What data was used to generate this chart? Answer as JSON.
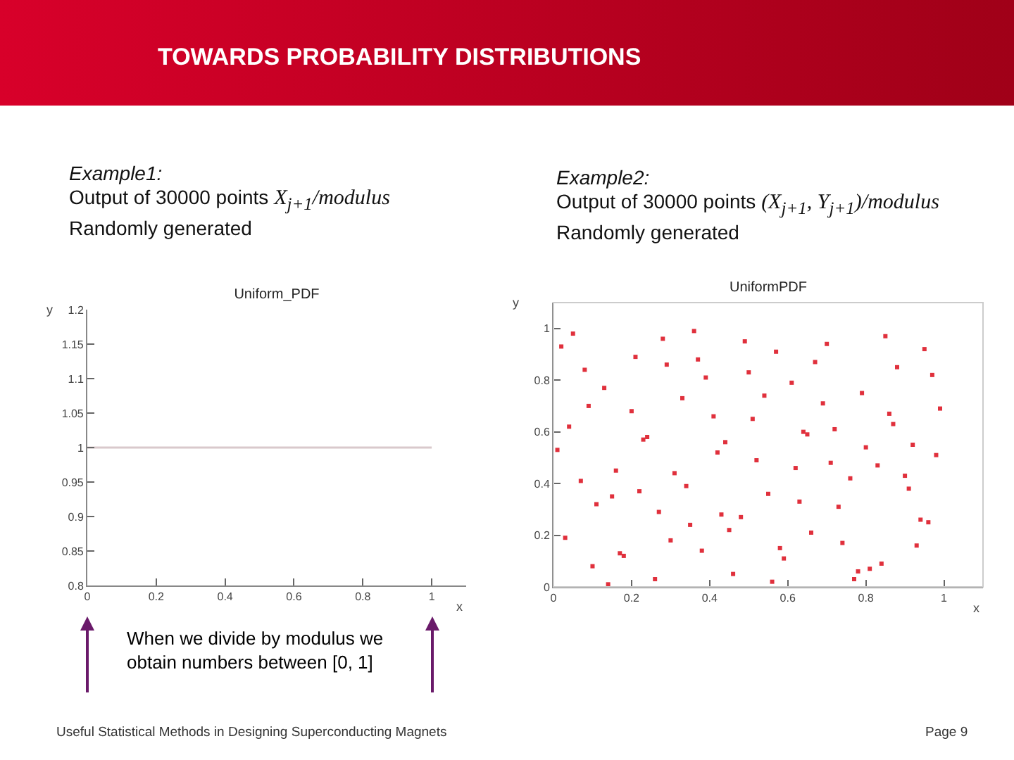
{
  "chart_data": [
    {
      "type": "line",
      "title": "Uniform_PDF",
      "xlabel": "x",
      "ylabel": "y",
      "annotations": [
        "TOWARDS PROBABILITY DISTRIBUTIONS",
        "Example1:",
        "Output of 30000 points X$_{j+1}$/modulus",
        "Randomly generated",
        "When we divide by modulus we obtain numbers between [0, 1]",
        "Useful Statistical Methods in Designing Superconducting Magnets",
        "Page 9"
      ],
      "x": [
        0,
        1
      ],
      "series": [
        {
          "color": "#d9c9cc",
          "values": [
            1,
            1
          ]
        }
      ],
      "xlim": [
        0,
        1.1
      ],
      "xticks": [
        0,
        0.2,
        0.4,
        0.6,
        0.8,
        1
      ],
      "ylim": [
        0.8,
        1.2
      ],
      "yticks": [
        0.8,
        0.85,
        0.9,
        0.95,
        1,
        1.05,
        1.1,
        1.15,
        1.2
      ],
      "marker": "none"
    },
    {
      "type": "scatter",
      "title": "UniformPDF",
      "xlabel": "x",
      "ylabel": "y",
      "annotations": [
        "Example2:",
        "Output of 30000 points (X$_{j+1}$, Y$_{j+1}$)/modulus",
        "Randomly generated"
      ],
      "x": [
        0.02,
        0.07,
        0.13,
        0.18,
        0.24,
        0.29,
        0.35,
        0.41,
        0.46,
        0.52,
        0.57,
        0.63,
        0.69,
        0.74,
        0.8,
        0.85,
        0.91,
        0.97,
        0.04,
        0.1,
        0.16,
        0.21,
        0.27,
        0.33,
        0.38,
        0.44,
        0.49,
        0.55,
        0.61,
        0.66,
        0.72,
        0.77,
        0.83,
        0.88,
        0.94,
        0.99,
        0.03,
        0.08,
        0.15,
        0.2,
        0.26,
        0.31,
        0.37,
        0.42,
        0.48,
        0.54,
        0.59,
        0.65,
        0.7,
        0.76,
        0.81,
        0.87,
        0.93,
        0.98,
        0.05,
        0.11,
        0.17,
        0.23,
        0.28,
        0.34,
        0.39,
        0.45,
        0.51,
        0.56,
        0.62,
        0.67,
        0.73,
        0.79,
        0.84,
        0.9,
        0.95,
        0.01,
        0.09,
        0.14,
        0.22,
        0.3,
        0.36,
        0.43,
        0.5,
        0.58,
        0.64,
        0.71,
        0.78,
        0.86,
        0.92,
        0.96
      ],
      "series": [
        {
          "color": "#e0303c",
          "values": [
            0.93,
            0.41,
            0.77,
            0.12,
            0.58,
            0.86,
            0.24,
            0.66,
            0.05,
            0.49,
            0.91,
            0.33,
            0.71,
            0.17,
            0.54,
            0.97,
            0.38,
            0.82,
            0.62,
            0.08,
            0.45,
            0.89,
            0.29,
            0.73,
            0.14,
            0.56,
            0.95,
            0.36,
            0.79,
            0.21,
            0.61,
            0.03,
            0.47,
            0.85,
            0.26,
            0.69,
            0.19,
            0.84,
            0.35,
            0.68,
            0.03,
            0.44,
            0.88,
            0.52,
            0.27,
            0.74,
            0.11,
            0.59,
            0.94,
            0.42,
            0.07,
            0.63,
            0.16,
            0.51,
            0.98,
            0.32,
            0.13,
            0.57,
            0.96,
            0.39,
            0.81,
            0.22,
            0.65,
            0.02,
            0.46,
            0.87,
            0.31,
            0.75,
            0.09,
            0.43,
            0.92,
            0.53,
            0.7,
            0.01,
            0.37,
            0.18,
            0.99,
            0.28,
            0.83,
            0.15,
            0.6,
            0.48,
            0.06,
            0.67,
            0.55,
            0.25
          ]
        }
      ],
      "xlim": [
        0,
        1.1
      ],
      "xticks": [
        0,
        0.2,
        0.4,
        0.6,
        0.8,
        1
      ],
      "ylim": [
        0,
        1.1
      ],
      "yticks": [
        0,
        0.2,
        0.4,
        0.6,
        0.8,
        1
      ],
      "marker": "square"
    }
  ]
}
